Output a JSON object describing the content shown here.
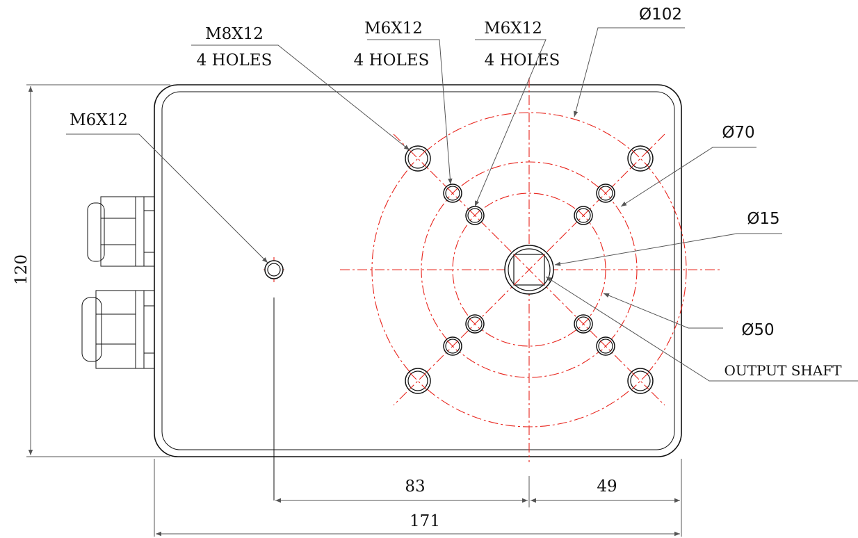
{
  "drawing": {
    "labels": {
      "m8_thread": "M8X12",
      "m8_holes": "4 HOLES",
      "m6_inner_thread": "M6X12",
      "m6_inner_holes": "4 HOLES",
      "m6_mid_thread": "M6X12",
      "m6_mid_holes": "4 HOLES",
      "m6_single": "M6X12",
      "dia_102": "Ø102",
      "dia_70": "Ø70",
      "dia_15": "Ø15",
      "dia_50": "Ø50",
      "output_shaft": "OUTPUT SHAFT"
    },
    "dimensions": {
      "height": "120",
      "horizontal_83": "83",
      "horizontal_49": "49",
      "overall_171": "171"
    },
    "colors": {
      "centerline": "#e8241c",
      "outline": "#111111"
    }
  }
}
